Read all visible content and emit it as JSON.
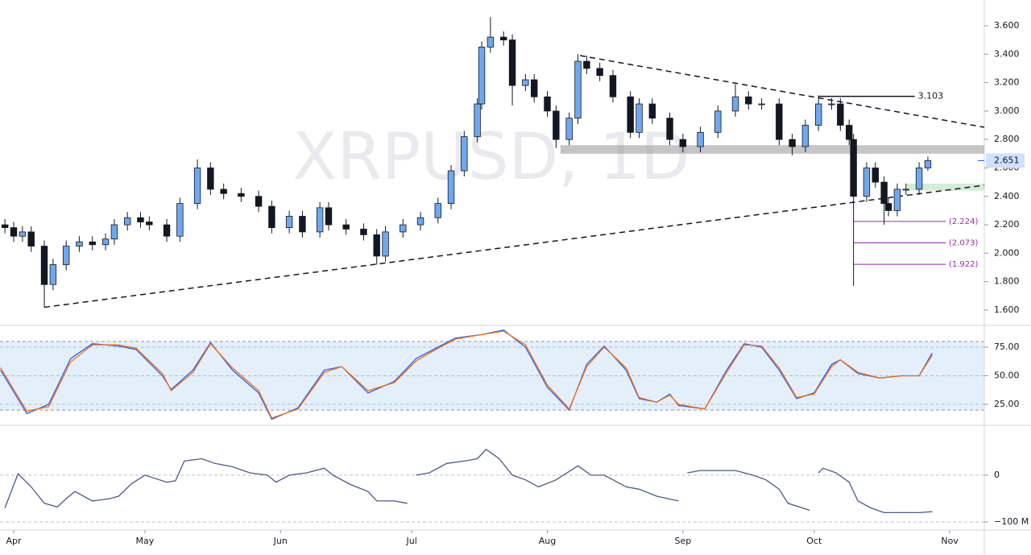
{
  "chart_data": [
    {
      "type": "candlestick",
      "title": "XRPUSD, 1D",
      "x": [
        -2,
        0,
        2,
        4,
        7,
        9,
        12,
        15,
        18,
        21,
        23,
        26,
        29,
        31,
        35,
        38,
        42,
        45,
        48,
        52,
        56,
        59,
        63,
        66,
        70,
        72,
        76,
        80,
        83,
        85,
        89,
        93,
        97,
        100,
        103,
        106,
        107,
        109,
        112,
        114,
        117,
        119,
        122,
        124,
        127,
        129,
        131,
        134,
        137,
        141,
        143,
        146,
        150,
        153,
        157,
        161,
        165,
        168,
        171,
        175,
        178,
        181,
        184,
        187,
        189,
        191,
        192,
        195,
        197,
        199,
        200,
        202,
        204,
        207,
        209
      ],
      "open": [
        2.2,
        2.18,
        2.12,
        2.15,
        2.05,
        1.78,
        1.92,
        2.05,
        2.08,
        2.06,
        2.1,
        2.2,
        2.25,
        2.22,
        2.2,
        2.12,
        2.35,
        2.6,
        2.45,
        2.42,
        2.4,
        2.33,
        2.18,
        2.26,
        2.15,
        2.32,
        2.2,
        2.17,
        2.13,
        1.98,
        2.15,
        2.2,
        2.25,
        2.35,
        2.58,
        2.82,
        3.05,
        3.45,
        3.52,
        3.5,
        3.18,
        3.22,
        3.1,
        3.0,
        2.8,
        2.95,
        3.35,
        3.3,
        3.25,
        3.1,
        2.85,
        3.05,
        2.95,
        2.8,
        2.75,
        2.85,
        3.0,
        3.1,
        3.05,
        3.05,
        2.8,
        2.75,
        2.9,
        3.05,
        3.05,
        2.9,
        2.8,
        2.4,
        2.6,
        2.5,
        2.35,
        2.3,
        2.45,
        2.45,
        2.6
      ],
      "high": [
        2.24,
        2.22,
        2.19,
        2.19,
        2.09,
        1.96,
        2.09,
        2.12,
        2.12,
        2.14,
        2.24,
        2.29,
        2.29,
        2.26,
        2.24,
        2.39,
        2.66,
        2.64,
        2.49,
        2.46,
        2.44,
        2.37,
        2.3,
        2.3,
        2.36,
        2.36,
        2.24,
        2.21,
        2.17,
        2.19,
        2.24,
        2.29,
        2.39,
        2.62,
        2.86,
        3.09,
        3.49,
        3.66,
        3.56,
        3.54,
        3.26,
        3.26,
        3.14,
        3.04,
        2.99,
        3.4,
        3.39,
        3.34,
        3.29,
        3.14,
        3.09,
        3.09,
        2.99,
        2.84,
        2.89,
        3.04,
        3.19,
        3.14,
        3.09,
        3.09,
        2.84,
        2.94,
        3.11,
        3.09,
        3.09,
        2.94,
        2.84,
        2.64,
        2.64,
        2.54,
        2.39,
        2.49,
        2.49,
        2.64,
        2.68
      ],
      "low": [
        2.14,
        2.08,
        2.08,
        2.01,
        1.62,
        1.74,
        1.88,
        2.01,
        2.02,
        2.02,
        2.06,
        2.16,
        2.18,
        2.16,
        2.08,
        2.08,
        2.31,
        2.41,
        2.38,
        2.36,
        2.29,
        2.14,
        2.14,
        2.11,
        2.11,
        2.16,
        2.13,
        2.09,
        1.92,
        1.94,
        2.11,
        2.16,
        2.21,
        2.31,
        2.54,
        2.78,
        3.01,
        3.41,
        3.46,
        3.04,
        3.14,
        3.06,
        2.96,
        2.74,
        2.76,
        2.91,
        3.26,
        3.21,
        3.06,
        2.81,
        2.81,
        2.91,
        2.76,
        2.71,
        2.71,
        2.81,
        2.96,
        3.01,
        3.01,
        2.76,
        2.69,
        2.71,
        2.86,
        3.01,
        2.86,
        2.76,
        1.77,
        2.36,
        2.46,
        2.2,
        2.26,
        2.26,
        2.41,
        2.41,
        2.58
      ],
      "close": [
        2.18,
        2.12,
        2.15,
        2.05,
        1.78,
        1.92,
        2.05,
        2.08,
        2.06,
        2.1,
        2.2,
        2.25,
        2.22,
        2.2,
        2.12,
        2.35,
        2.6,
        2.45,
        2.42,
        2.4,
        2.33,
        2.18,
        2.26,
        2.15,
        2.32,
        2.2,
        2.17,
        2.13,
        1.98,
        2.15,
        2.2,
        2.25,
        2.35,
        2.58,
        2.82,
        3.05,
        3.45,
        3.52,
        3.5,
        3.18,
        3.22,
        3.1,
        3.0,
        2.8,
        2.95,
        3.35,
        3.3,
        3.25,
        3.1,
        2.85,
        3.05,
        2.95,
        2.8,
        2.75,
        2.85,
        3.0,
        3.1,
        3.05,
        3.05,
        2.8,
        2.75,
        2.9,
        3.05,
        3.05,
        2.9,
        2.8,
        2.4,
        2.6,
        2.5,
        2.35,
        2.3,
        2.45,
        2.45,
        2.6,
        2.651
      ],
      "up_color": "#6fa8f0",
      "down_color": "#131722",
      "xlim": [
        -3.13,
        221.9
      ],
      "xticks": [
        {
          "value": 0,
          "label": "Apr"
        },
        {
          "value": 30,
          "label": "May"
        },
        {
          "value": 61,
          "label": "Jun"
        },
        {
          "value": 91,
          "label": "Jul"
        },
        {
          "value": 122,
          "label": "Aug"
        },
        {
          "value": 153,
          "label": "Sep"
        },
        {
          "value": 183,
          "label": "Oct"
        },
        {
          "value": 214,
          "label": "Nov"
        }
      ],
      "ylim": [
        1.498,
        3.781
      ],
      "yticks": [
        {
          "value": 3.6,
          "label": "3.600"
        },
        {
          "value": 3.4,
          "label": "3.400"
        },
        {
          "value": 3.2,
          "label": "3.200"
        },
        {
          "value": 3.0,
          "label": "3.000"
        },
        {
          "value": 2.8,
          "label": "2.800"
        },
        {
          "value": 2.6,
          "label": "2.600"
        },
        {
          "value": 2.4,
          "label": "2.400"
        },
        {
          "value": 2.2,
          "label": "2.200"
        },
        {
          "value": 2.0,
          "label": "2.000"
        },
        {
          "value": 1.8,
          "label": "1.800"
        },
        {
          "value": 1.6,
          "label": "1.600"
        }
      ],
      "last_price": {
        "value": 2.651,
        "label": "2.651"
      },
      "trendlines": [
        {
          "x": [
            7,
            221.9
          ],
          "y": [
            1.62,
            2.478
          ]
        },
        {
          "x": [
            129.5,
            221.9
          ],
          "y": [
            3.39,
            2.886
          ]
        }
      ],
      "resistance": {
        "value": 3.103,
        "label": "3.103",
        "x": [
          184,
          206
        ]
      },
      "levels": [
        {
          "value": 2.224,
          "label": "(2.224)"
        },
        {
          "value": 2.073,
          "label": "(2.073)"
        },
        {
          "value": 1.922,
          "label": "(1.922)"
        }
      ],
      "levels_x": [
        192,
        220.5
      ],
      "levels_color": "#9c27b0",
      "zones": [
        {
          "range": [
            2.7,
            2.76
          ],
          "x": [
            125,
            221.9
          ],
          "color": "#9e9e9e"
        },
        {
          "range": [
            2.44,
            2.49
          ],
          "x": [
            204,
            221.9
          ],
          "color": "#b7e1b9"
        }
      ]
    },
    {
      "type": "line",
      "x": [
        -3,
        3,
        8,
        13,
        18,
        24,
        28,
        34,
        36,
        41,
        45,
        50,
        56,
        59,
        65,
        71,
        75,
        81,
        87,
        92,
        97,
        101,
        107,
        112,
        117,
        122,
        127,
        131,
        135,
        140,
        143,
        147,
        150,
        152,
        158,
        163,
        167,
        171,
        175,
        179,
        183,
        187,
        189,
        193,
        198,
        203,
        207,
        210
      ],
      "series": [
        {
          "color": "#2962ff",
          "values": [
            55,
            17,
            25,
            65,
            78,
            76,
            73,
            50,
            38,
            55,
            79,
            55,
            35,
            12,
            22,
            55,
            58,
            35,
            45,
            65,
            75,
            83,
            86,
            90,
            75,
            40,
            20,
            60,
            76,
            55,
            30,
            27,
            34,
            24,
            21,
            55,
            78,
            75,
            55,
            30,
            35,
            60,
            64,
            52,
            48,
            50,
            50,
            70
          ]
        },
        {
          "color": "#ff6d00",
          "values": [
            57,
            19,
            23,
            62,
            77,
            77,
            74,
            52,
            37,
            53,
            78,
            57,
            37,
            13,
            21,
            53,
            58,
            37,
            44,
            63,
            74,
            82,
            86,
            89,
            77,
            42,
            21,
            58,
            75,
            57,
            31,
            27,
            33,
            25,
            21,
            53,
            77,
            76,
            57,
            31,
            34,
            58,
            64,
            53,
            48,
            50,
            50,
            68
          ]
        }
      ],
      "ylim": [
        8.8,
        93.3
      ],
      "yticks": [
        {
          "value": 75,
          "label": "75.00"
        },
        {
          "value": 50,
          "label": "50.00"
        },
        {
          "value": 25,
          "label": "25.00"
        }
      ],
      "band": [
        20,
        80
      ],
      "band_color": "#e3f0fb"
    },
    {
      "type": "line",
      "x": [
        -2,
        1,
        4,
        7,
        10,
        12,
        14,
        18,
        22,
        24,
        27,
        30,
        35,
        37,
        39,
        43,
        46,
        50,
        54,
        58,
        60,
        63,
        67,
        71,
        73,
        77,
        81,
        83,
        87,
        90,
        91,
        92,
        95,
        99,
        103,
        106,
        108,
        111,
        114,
        117,
        120,
        124,
        129,
        132,
        135,
        140,
        143,
        147,
        152,
        153,
        154,
        157,
        163,
        165,
        169,
        172,
        175,
        177,
        182,
        183,
        184,
        185,
        188,
        191,
        193,
        196,
        199,
        203,
        207,
        210
      ],
      "values": [
        -70000000,
        3000000,
        -25000000,
        -60000000,
        -68000000,
        -50000000,
        -35000000,
        -55000000,
        -50000000,
        -45000000,
        -18000000,
        0,
        -15000000,
        -12000000,
        30000000,
        35000000,
        25000000,
        18000000,
        5000000,
        0,
        -15000000,
        0,
        5000000,
        15000000,
        0,
        -20000000,
        -35000000,
        -55000000,
        -55000000,
        -60000000,
        null,
        0,
        5000000,
        25000000,
        30000000,
        35000000,
        55000000,
        35000000,
        0,
        -10000000,
        -25000000,
        -10000000,
        20000000,
        0,
        0,
        -25000000,
        -30000000,
        -45000000,
        -55000000,
        null,
        5000000,
        10000000,
        10000000,
        10000000,
        0,
        -10000000,
        -30000000,
        -60000000,
        -75000000,
        null,
        5000000,
        15000000,
        5000000,
        -15000000,
        -55000000,
        -70000000,
        -80000000,
        -80000000,
        -80000000,
        -78000000
      ],
      "color": "#4a5a8c",
      "ylim": [
        -112000000,
        103000000
      ],
      "yticks": [
        0,
        {
          "value": -100000000,
          "label": "−100 M"
        }
      ]
    }
  ]
}
